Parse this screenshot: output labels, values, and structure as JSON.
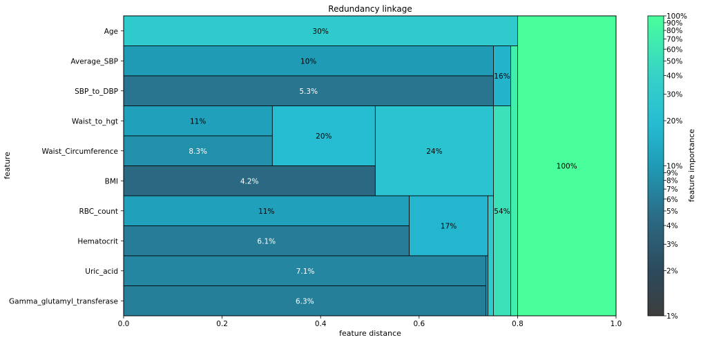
{
  "chart_data": {
    "type": "redundancy-linkage",
    "title": "Redundancy linkage",
    "xlabel": "feature distance",
    "ylabel": "feature",
    "xlim": [
      0,
      1.0
    ],
    "xticks": [
      "0.0",
      "0.2",
      "0.4",
      "0.6",
      "0.8",
      "1.0"
    ],
    "colorbar": {
      "label": "feature importance",
      "scale": "log",
      "range": [
        1,
        100
      ],
      "ticks": [
        "1%",
        "2%",
        "3%",
        "4%",
        "5%",
        "6%",
        "7%",
        "8%",
        "9%",
        "10%",
        "20%",
        "30%",
        "40%",
        "50%",
        "60%",
        "70%",
        "80%",
        "90%",
        "100%"
      ]
    },
    "features": [
      "Age",
      "Average_SBP",
      "SBP_to_DBP",
      "Waist_to_hgt",
      "Waist_Circumference",
      "BMI",
      "RBC_count",
      "Hematocrit",
      "Uric_acid",
      "Gamma_glutamyl_transferase"
    ],
    "blocks": [
      {
        "label": "30%",
        "importance": 30,
        "x": [
          0,
          0.8
        ],
        "rows": [
          0,
          1
        ]
      },
      {
        "label": "10%",
        "importance": 10,
        "x": [
          0,
          0.751
        ],
        "rows": [
          1,
          2
        ]
      },
      {
        "label": "5.3%",
        "importance": 5.3,
        "x": [
          0,
          0.751
        ],
        "rows": [
          2,
          3
        ]
      },
      {
        "label": "16%",
        "importance": 16,
        "x": [
          0.751,
          0.786
        ],
        "rows": [
          1,
          3
        ]
      },
      {
        "label": "11%",
        "importance": 11,
        "x": [
          0,
          0.302
        ],
        "rows": [
          3,
          4
        ]
      },
      {
        "label": "8.3%",
        "importance": 8.3,
        "x": [
          0,
          0.302
        ],
        "rows": [
          4,
          5
        ]
      },
      {
        "label": "20%",
        "importance": 20,
        "x": [
          0.302,
          0.511
        ],
        "rows": [
          3,
          5
        ]
      },
      {
        "label": "4.2%",
        "importance": 4.2,
        "x": [
          0,
          0.511
        ],
        "rows": [
          5,
          6
        ]
      },
      {
        "label": "24%",
        "importance": 24,
        "x": [
          0.511,
          0.751
        ],
        "rows": [
          3,
          6
        ]
      },
      {
        "label": "11%",
        "importance": 11,
        "x": [
          0,
          0.58
        ],
        "rows": [
          6,
          7
        ]
      },
      {
        "label": "6.1%",
        "importance": 6.1,
        "x": [
          0,
          0.58
        ],
        "rows": [
          7,
          8
        ]
      },
      {
        "label": "17%",
        "importance": 17,
        "x": [
          0.58,
          0.74
        ],
        "rows": [
          6,
          8
        ]
      },
      {
        "label": "7.1%",
        "importance": 7.1,
        "x": [
          0,
          0.738
        ],
        "rows": [
          8,
          9
        ]
      },
      {
        "label": "6.3%",
        "importance": 6.3,
        "x": [
          0,
          0.736
        ],
        "rows": [
          9,
          10
        ]
      },
      {
        "label": "",
        "importance": 13,
        "x": [
          0.736,
          0.74
        ],
        "rows": [
          8,
          10
        ]
      },
      {
        "label": "",
        "importance": 30,
        "x": [
          0.74,
          0.751
        ],
        "rows": [
          6,
          10
        ]
      },
      {
        "label": "54%",
        "importance": 54,
        "x": [
          0.751,
          0.786
        ],
        "rows": [
          3,
          10
        ]
      },
      {
        "label": "",
        "importance": 70,
        "x": [
          0.786,
          0.8
        ],
        "rows": [
          1,
          10
        ]
      },
      {
        "label": "100%",
        "importance": 100,
        "x": [
          0.8,
          1.0
        ],
        "rows": [
          0,
          10
        ]
      }
    ]
  }
}
